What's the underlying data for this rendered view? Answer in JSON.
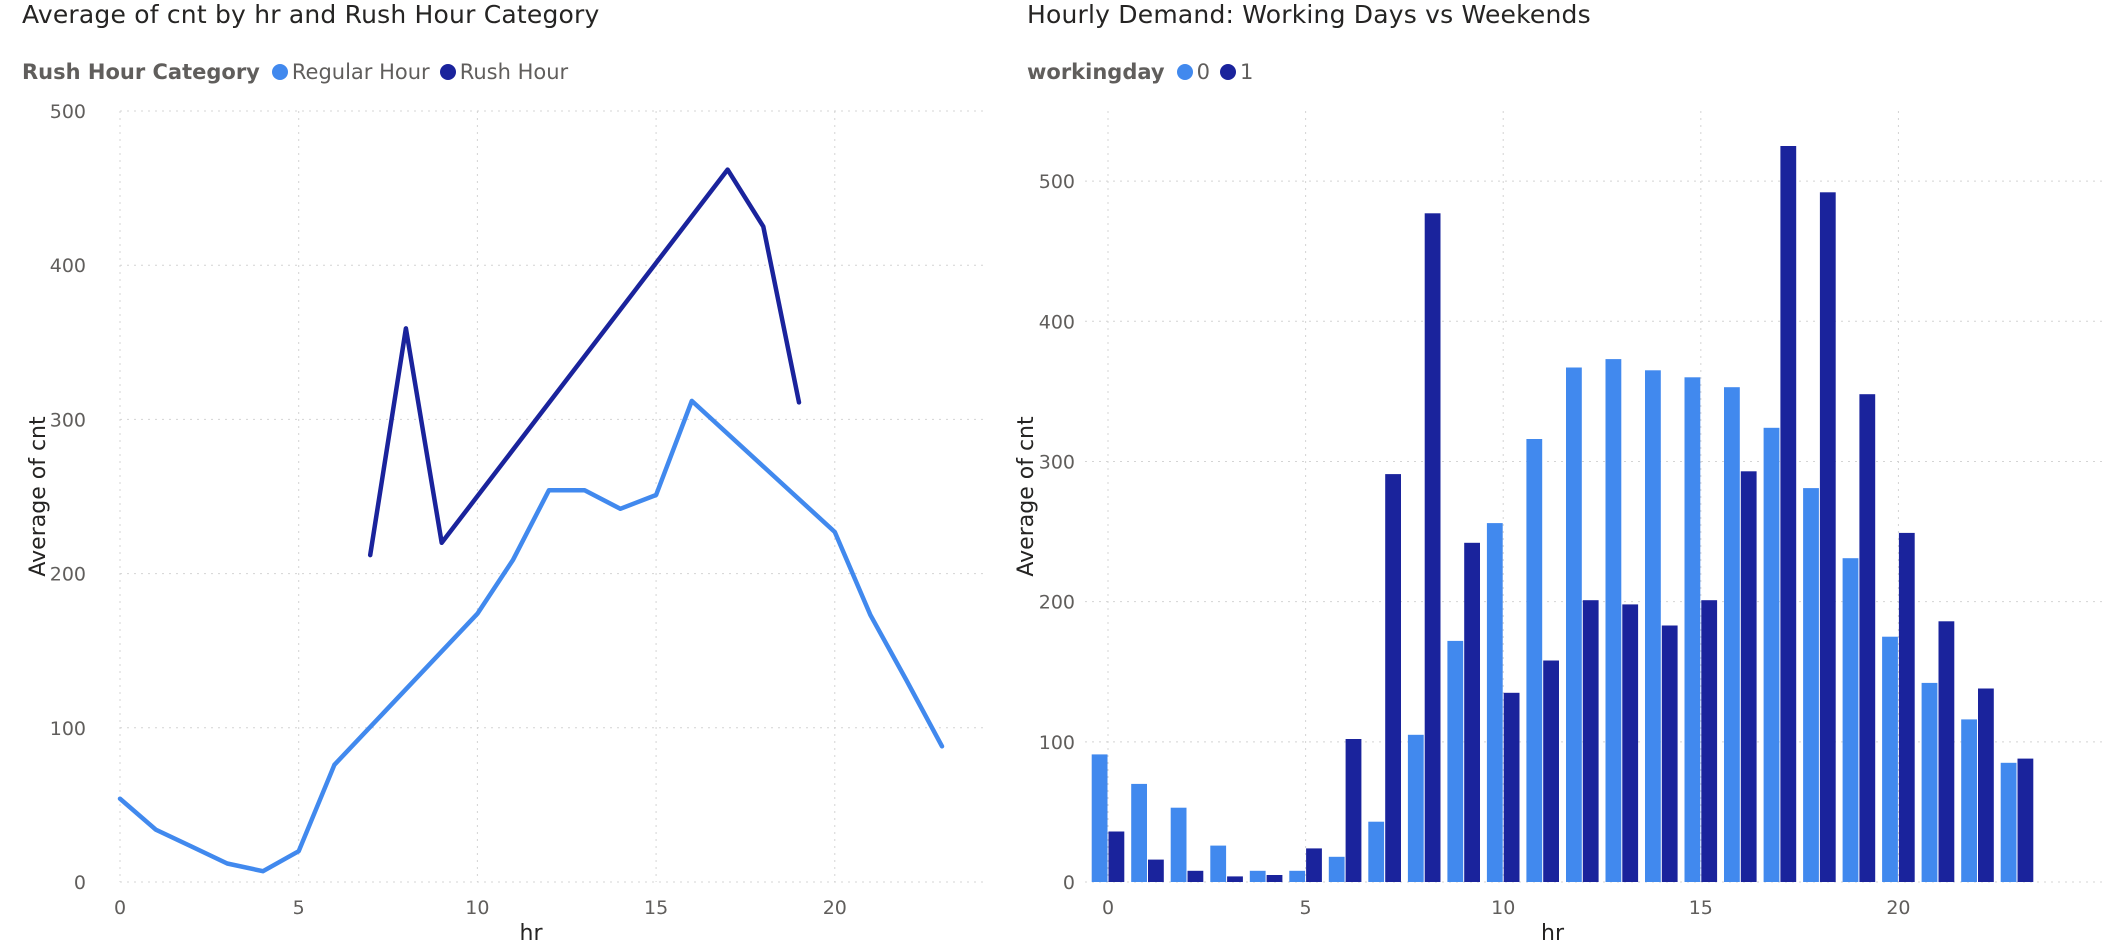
{
  "chart_data": [
    {
      "type": "line",
      "title": "Average of cnt by hr and Rush Hour Category",
      "legend_title": "Rush Hour Category",
      "legend_placement": "top-left",
      "xlabel": "hr",
      "ylabel": "Average of cnt",
      "xlim": [
        0,
        23
      ],
      "ylim": [
        0,
        500
      ],
      "xticks": [
        "0",
        "5",
        "10",
        "15",
        "20"
      ],
      "yticks": [
        "0",
        "100",
        "200",
        "300",
        "400",
        "500"
      ],
      "grid": true,
      "series": [
        {
          "name": "Regular Hour",
          "color": "#4189ee",
          "x": [
            0,
            1,
            2,
            3,
            4,
            5,
            6,
            10,
            11,
            12,
            13,
            14,
            15,
            16,
            20,
            21,
            22,
            23
          ],
          "y": [
            54,
            34,
            23,
            12,
            7,
            20,
            76,
            174,
            209,
            254,
            254,
            242,
            251,
            312,
            227,
            173,
            131,
            88
          ]
        },
        {
          "name": "Rush Hour",
          "color": "#1a239c",
          "x": [
            7,
            8,
            9,
            17,
            18,
            19
          ],
          "y": [
            212,
            359,
            220,
            462,
            425,
            311
          ]
        }
      ]
    },
    {
      "type": "bar",
      "title": "Hourly Demand: Working Days vs Weekends",
      "legend_title": "workingday",
      "legend_placement": "top-left",
      "xlabel": "hr",
      "ylabel": "Average of cnt",
      "ylim": [
        0,
        550
      ],
      "xticks": [
        "0",
        "5",
        "10",
        "15",
        "20"
      ],
      "yticks": [
        "0",
        "100",
        "200",
        "300",
        "400",
        "500"
      ],
      "grid": true,
      "categories": [
        0,
        1,
        2,
        3,
        4,
        5,
        6,
        7,
        8,
        9,
        10,
        11,
        12,
        13,
        14,
        15,
        16,
        17,
        18,
        19,
        20,
        21,
        22,
        23
      ],
      "series": [
        {
          "name": "0",
          "color": "#4189ee",
          "values": [
            91,
            70,
            53,
            26,
            8,
            8,
            18,
            43,
            105,
            172,
            256,
            316,
            367,
            373,
            365,
            360,
            353,
            324,
            281,
            231,
            175,
            142,
            116,
            85
          ]
        },
        {
          "name": "1",
          "color": "#1a239c",
          "values": [
            36,
            16,
            8,
            4,
            5,
            24,
            102,
            291,
            477,
            242,
            135,
            158,
            201,
            198,
            183,
            201,
            293,
            525,
            492,
            348,
            249,
            186,
            138,
            88
          ]
        }
      ]
    }
  ]
}
